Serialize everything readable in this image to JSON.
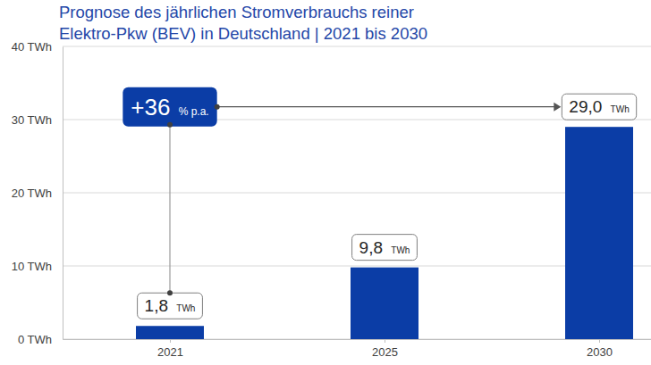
{
  "chart_data": {
    "type": "bar",
    "title": [
      "Prognose des jährlichen Stromverbrauchs reiner",
      "Elektro-Pkw (BEV) in Deutschland | 2021 bis 2030"
    ],
    "categories": [
      "2021",
      "2025",
      "2030"
    ],
    "values": [
      1.8,
      9.8,
      29.0
    ],
    "value_labels": [
      "1,8 TWh",
      "9,8 TWh",
      "29,0 TWh"
    ],
    "color": "#0b3da6",
    "ylim": [
      0,
      40
    ],
    "yticks": [
      {
        "value": 0,
        "label": "0 TWh"
      },
      {
        "value": 10,
        "label": "10 TWh"
      },
      {
        "value": 20,
        "label": "20 TWh"
      },
      {
        "value": 30,
        "label": "30 TWh"
      },
      {
        "value": 40,
        "label": "40 TWh"
      }
    ],
    "grid": true,
    "data_labels": true,
    "annotation": "+36 % p.a."
  }
}
